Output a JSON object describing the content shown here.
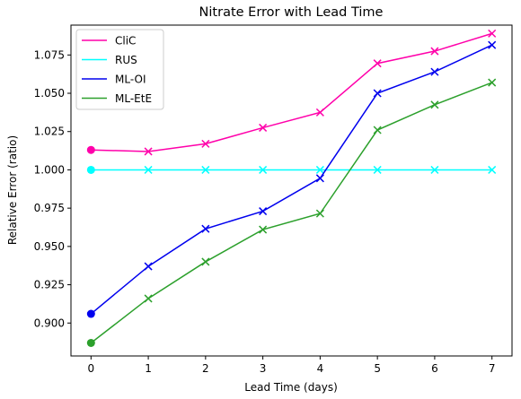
{
  "chart_data": {
    "type": "line",
    "title": "Nitrate Error with Lead Time",
    "xlabel": "Lead Time (days)",
    "ylabel": "Relative Error (ratio)",
    "x": [
      0,
      1,
      2,
      3,
      4,
      5,
      6,
      7
    ],
    "xlim": [
      -0.35,
      7.35
    ],
    "ylim": [
      0.8785,
      1.0945
    ],
    "xticks": [
      "0",
      "1",
      "2",
      "3",
      "4",
      "5",
      "6",
      "7"
    ],
    "yticks": [
      "0.900",
      "0.925",
      "0.950",
      "0.975",
      "1.000",
      "1.025",
      "1.050",
      "1.075"
    ],
    "grid": false,
    "legend_position": "top-left",
    "series": [
      {
        "name": "CliC",
        "color": "#ff00aa",
        "values": [
          1.013,
          1.012,
          1.017,
          1.0275,
          1.0375,
          1.0695,
          1.0775,
          1.089
        ]
      },
      {
        "name": "RUS",
        "color": "#00ffff",
        "values": [
          1.0,
          1.0,
          1.0,
          1.0,
          1.0,
          1.0,
          1.0,
          1.0
        ]
      },
      {
        "name": "ML-OI",
        "color": "#0000ee",
        "values": [
          0.906,
          0.937,
          0.9615,
          0.973,
          0.9945,
          1.05,
          1.064,
          1.0815
        ]
      },
      {
        "name": "ML-EtE",
        "color": "#2ca02c",
        "values": [
          0.887,
          0.916,
          0.94,
          0.961,
          0.9715,
          1.026,
          1.0425,
          1.057
        ]
      }
    ]
  }
}
